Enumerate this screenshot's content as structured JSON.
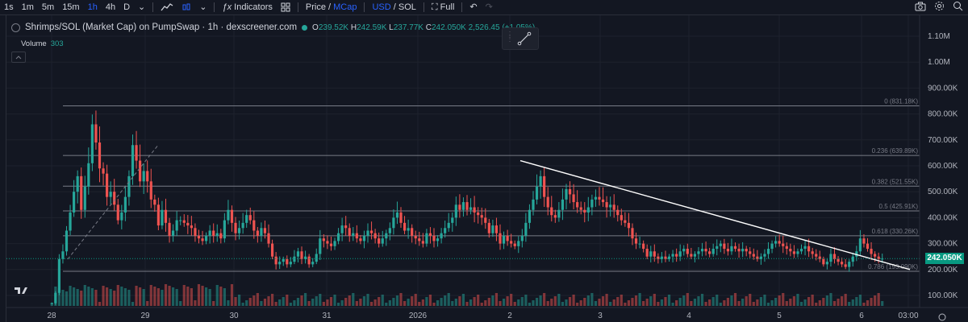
{
  "toolbar": {
    "intervals": [
      "1s",
      "1m",
      "5m",
      "15m",
      "1h",
      "4h",
      "D"
    ],
    "active_interval": "1h",
    "indicators_label": "Indicators",
    "price_label": "Price",
    "price_sep": "/",
    "mcap_label": "MCap",
    "usd_label": "USD",
    "currency_sep": "/",
    "sol_label": "SOL",
    "full_label": "Full"
  },
  "legend": {
    "title": "Shrimps/SOL (Market Cap) on PumpSwap · 1h · dexscreener.com",
    "open": "239.52K",
    "high": "242.59K",
    "low": "237.77K",
    "close": "242.050K",
    "change": "2,526.45 (+1.05%)",
    "volume_label": "Volume",
    "volume_value": "303"
  },
  "colors": {
    "up": "#26a69a",
    "down": "#ef5350",
    "accent": "#2962ff",
    "background": "#131722"
  },
  "price_axis": {
    "ticks": [
      "1.10M",
      "1.00M",
      "900.00K",
      "800.00K",
      "700.00K",
      "600.00K",
      "500.00K",
      "400.00K",
      "300.00K",
      "200.00K",
      "100.00K"
    ],
    "current_price": "242.050K"
  },
  "time_axis": {
    "ticks": [
      "28",
      "29",
      "30",
      "31",
      "2026",
      "2",
      "3",
      "4",
      "5",
      "6",
      "03:00"
    ]
  },
  "fib_levels": [
    {
      "label": "0 (831.18K)",
      "value": 831180
    },
    {
      "label": "0.236 (639.89K)",
      "value": 639890
    },
    {
      "label": "0.382 (521.55K)",
      "value": 521550
    },
    {
      "label": "0.5 (425.91K)",
      "value": 425910
    },
    {
      "label": "0.618 (330.26K)",
      "value": 330260
    },
    {
      "label": "0.786 (193.090K)",
      "value": 193090
    }
  ],
  "chart_data": {
    "type": "candlestick",
    "x_range": [
      "28",
      "03:00"
    ],
    "ylim": [
      50000,
      1150000
    ],
    "y_scale": "linear",
    "current_price": 242050,
    "trendline": {
      "from": {
        "x": "2",
        "y": 620000
      },
      "to": {
        "x": "6",
        "y": 200000
      }
    },
    "series": [
      {
        "name": "Shrimps/SOL (Market Cap)",
        "values": [
          70,
          110,
          240,
          270,
          350,
          420,
          500,
          560,
          430,
          520,
          610,
          760,
          690,
          590,
          570,
          480,
          500,
          450,
          390,
          420,
          480,
          560,
          680,
          620,
          540,
          580,
          540,
          470,
          450,
          370,
          430,
          380,
          330,
          350,
          390,
          390,
          380,
          370,
          360,
          330,
          320,
          310,
          330,
          350,
          330,
          340,
          320,
          390,
          430,
          380,
          340,
          360,
          380,
          410,
          390,
          350,
          330,
          360,
          340,
          300,
          250,
          220,
          230,
          240,
          220,
          230,
          250,
          270,
          240,
          250,
          220,
          230,
          260,
          320,
          310,
          300,
          290,
          310,
          340,
          370,
          360,
          330,
          340,
          320,
          310,
          330,
          350,
          340,
          320,
          300,
          320,
          340,
          360,
          400,
          420,
          380,
          350,
          360,
          330,
          320,
          310,
          300,
          340,
          330,
          310,
          320,
          340,
          360,
          380,
          400,
          450,
          430,
          460,
          430,
          440,
          420,
          410,
          400,
          380,
          340,
          370,
          340,
          300,
          330,
          310,
          300,
          290,
          310,
          330,
          380,
          430,
          470,
          520,
          560,
          480,
          440,
          410,
          400,
          430,
          470,
          510,
          490,
          460,
          440,
          430,
          420,
          440,
          470,
          480,
          470,
          460,
          440,
          450,
          430,
          410,
          390,
          380,
          360,
          320,
          300,
          300,
          280,
          250,
          270,
          250,
          240,
          250,
          240,
          250,
          260,
          250,
          270,
          280,
          260,
          250,
          260,
          270,
          280,
          270,
          260,
          280,
          290,
          300,
          280,
          270,
          290,
          280,
          270,
          280,
          270,
          260,
          250,
          240,
          250,
          260,
          280,
          300,
          310,
          300,
          290,
          280,
          270,
          260,
          270,
          280,
          290,
          270,
          260,
          250,
          240,
          220,
          230,
          260,
          240,
          230,
          220,
          210,
          230,
          250,
          270,
          320,
          300,
          280,
          260,
          250,
          240,
          242
        ]
      }
    ],
    "volume": [
      303
    ]
  }
}
